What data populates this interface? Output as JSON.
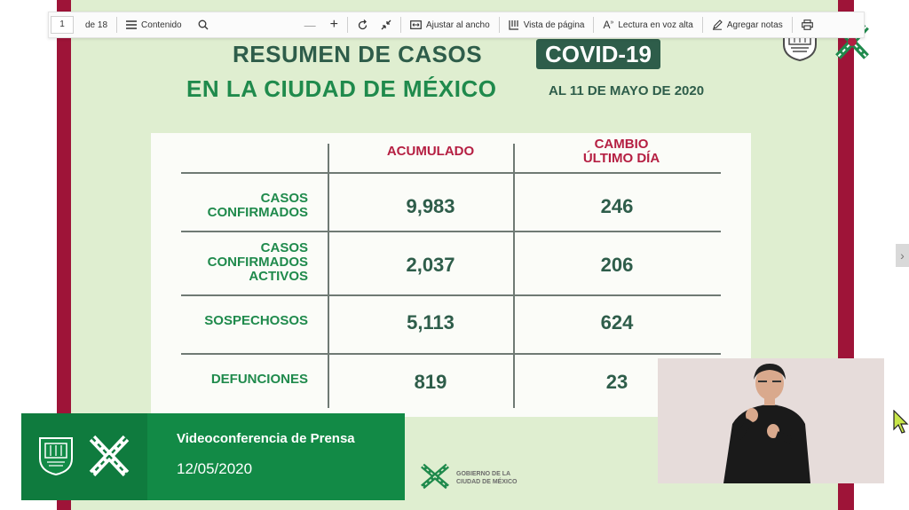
{
  "toolbar": {
    "page_current": "1",
    "page_total": "de 18",
    "contents_label": "Contenido",
    "zoom_out": "—",
    "zoom_in": "+",
    "fit_width_label": "Ajustar al ancho",
    "page_view_label": "Vista de página",
    "read_aloud_label": "Lectura en voz alta",
    "add_notes_label": "Agregar notas"
  },
  "slide": {
    "title_line1": "RESUMEN DE CASOS",
    "covid_badge": "COVID-19",
    "title_line2": "EN LA CIUDAD DE MÉXICO",
    "date": "AL 11 DE MAYO DE 2020",
    "table": {
      "col_accumulated": "ACUMULADO",
      "col_change_line1": "CAMBIO",
      "col_change_line2": "ÚLTIMO DÍA",
      "rows": [
        {
          "label_lines": [
            "CASOS",
            "CONFIRMADOS"
          ],
          "accumulated": "9,983",
          "change": "246"
        },
        {
          "label_lines": [
            "CASOS",
            "CONFIRMADOS",
            "ACTIVOS"
          ],
          "accumulated": "2,037",
          "change": "206"
        },
        {
          "label_lines": [
            "SOSPECHOSOS"
          ],
          "accumulated": "5,113",
          "change": "624"
        },
        {
          "label_lines": [
            "DEFUNCIONES"
          ],
          "accumulated": "819",
          "change": "23"
        }
      ]
    },
    "footer_logo_text_line1": "GOBIERNO DE LA",
    "footer_logo_text_line2": "CIUDAD DE MÉXICO"
  },
  "banner": {
    "title": "Videoconferencia de Prensa",
    "date": "12/05/2020"
  },
  "colors": {
    "frame": "#9e1438",
    "slide_bg": "#dfeed0",
    "dark_green": "#2e5d4a",
    "bright_green": "#1f8a4c",
    "header_red": "#b51f42",
    "banner_green": "#128a46"
  },
  "icons": [
    "contents-icon",
    "search-icon",
    "rotate-icon",
    "fit-icon",
    "page-view-icon",
    "read-aloud-icon",
    "notes-icon",
    "print-icon",
    "next-page-icon"
  ]
}
